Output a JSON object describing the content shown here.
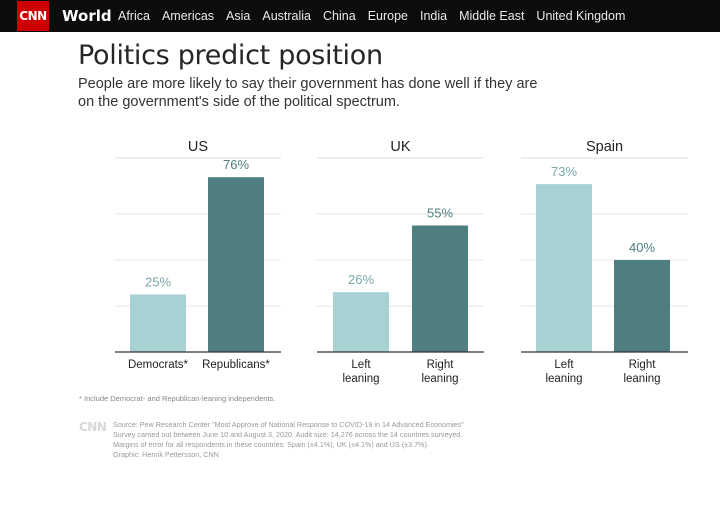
{
  "header": {
    "logo": "CNN",
    "section": "World",
    "nav": [
      "Africa",
      "Americas",
      "Asia",
      "Australia",
      "China",
      "Europe",
      "India",
      "Middle East",
      "United Kingdom"
    ]
  },
  "title": "Politics predict position",
  "subtitle": "People are more likely to say their government has done well if they are on the government's side of the political spectrum.",
  "chart_data": [
    {
      "type": "bar",
      "title": "US",
      "categories": [
        "Democrats*",
        "Republicans*"
      ],
      "values": [
        25,
        76
      ],
      "labels": [
        "25%",
        "76%"
      ],
      "ylim": [
        0,
        80
      ],
      "grid": true
    },
    {
      "type": "bar",
      "title": "UK",
      "categories": [
        "Left leaning",
        "Right leaning"
      ],
      "values": [
        26,
        55
      ],
      "labels": [
        "26%",
        "55%"
      ],
      "ylim": [
        0,
        80
      ],
      "grid": true
    },
    {
      "type": "bar",
      "title": "Spain",
      "categories": [
        "Left leaning",
        "Right leaning"
      ],
      "values": [
        73,
        40
      ],
      "labels": [
        "73%",
        "40%"
      ],
      "ylim": [
        0,
        80
      ],
      "grid": true
    }
  ],
  "colors": {
    "light_bar": "#a7d1d3",
    "dark_bar": "#4e7e80",
    "light_label": "#7aa8ab",
    "dark_label": "#4e7e80"
  },
  "footnote": "* Include Democrat- and Republican-leaning independents.",
  "source_mark": "CNN",
  "source_lines": [
    "Source: Pew Research Center \"Most Approve of National Response to COVID-19 in 14 Advanced Economies\"",
    "Survey carried out between June 10 and August 3, 2020. Audit size: 14,276 across the 14 countries surveyed.",
    "Margins of error for all respondents in these countries: Spain (±4.1%), UK (±4.1%) and US (±3.7%).",
    "Graphic: Henrik Pettersson, CNN"
  ]
}
